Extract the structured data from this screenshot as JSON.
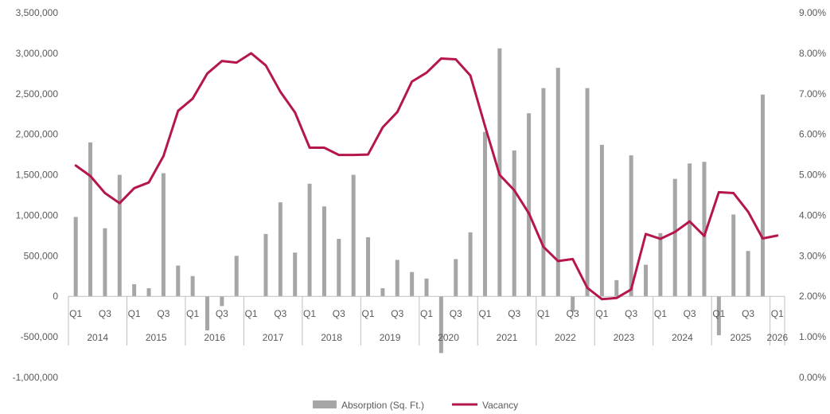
{
  "chart_data": {
    "type": "bar",
    "secondary_type": "line",
    "series": [
      {
        "name": "Absorption (Sq. Ft.)",
        "axis": "left",
        "color": "#a6a6a6",
        "values": [
          980000,
          1900000,
          840000,
          1500000,
          150000,
          100000,
          1520000,
          380000,
          250000,
          -420000,
          -120000,
          500000,
          0,
          770000,
          1160000,
          540000,
          1390000,
          1110000,
          710000,
          1500000,
          730000,
          100000,
          450000,
          300000,
          220000,
          -700000,
          460000,
          790000,
          2030000,
          3060000,
          1800000,
          2260000,
          2570000,
          2820000,
          -190000,
          2570000,
          1870000,
          200000,
          1740000,
          390000,
          780000,
          1450000,
          1640000,
          1660000,
          -480000,
          1010000,
          560000,
          2490000,
          0
        ]
      },
      {
        "name": "Vacancy",
        "axis": "right",
        "color": "#b5174c",
        "values": [
          0.0523,
          0.0497,
          0.0455,
          0.043,
          0.0467,
          0.0481,
          0.0546,
          0.0658,
          0.0688,
          0.075,
          0.0781,
          0.0777,
          0.08,
          0.077,
          0.0705,
          0.0654,
          0.0567,
          0.0567,
          0.0549,
          0.0549,
          0.055,
          0.0617,
          0.0655,
          0.073,
          0.0752,
          0.0787,
          0.0785,
          0.0745,
          0.062,
          0.05,
          0.0462,
          0.0405,
          0.0322,
          0.0287,
          0.0292,
          0.0221,
          0.0193,
          0.0196,
          0.0217,
          0.0354,
          0.0342,
          0.0359,
          0.0385,
          0.0349,
          0.0457,
          0.0455,
          0.0409,
          0.0343,
          0.035
        ]
      }
    ],
    "quarter_labels": [
      "Q1",
      "Q3"
    ],
    "year_labels": [
      "2014",
      "2015",
      "2016",
      "2017",
      "2018",
      "2019",
      "2020",
      "2021",
      "2022",
      "2023",
      "2024",
      "2025",
      "2026"
    ],
    "y_left": {
      "min": -1000000,
      "max": 3500000,
      "step": 500000,
      "tick_labels": [
        "-1,000,000",
        "-500,000",
        "0",
        "500,000",
        "1,000,000",
        "1,500,000",
        "2,000,000",
        "2,500,000",
        "3,000,000",
        "3,500,000"
      ]
    },
    "y_right": {
      "min": 0,
      "max": 0.09,
      "step": 0.01,
      "tick_labels": [
        "0.00%",
        "1.00%",
        "2.00%",
        "3.00%",
        "4.00%",
        "5.00%",
        "6.00%",
        "7.00%",
        "8.00%",
        "9.00%"
      ]
    },
    "grid": false,
    "legend_position": "bottom",
    "legend": [
      "Absorption (Sq. Ft.)",
      "Vacancy"
    ]
  }
}
